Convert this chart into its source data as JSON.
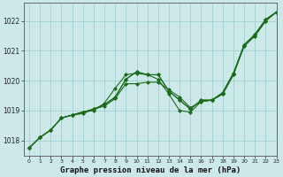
{
  "xlabel": "Graphe pression niveau de la mer (hPa)",
  "xlim": [
    -0.5,
    23
  ],
  "ylim": [
    1017.5,
    1022.6
  ],
  "yticks": [
    1018,
    1019,
    1020,
    1021,
    1022
  ],
  "xticks": [
    0,
    1,
    2,
    3,
    4,
    5,
    6,
    7,
    8,
    9,
    10,
    11,
    12,
    13,
    14,
    15,
    16,
    17,
    18,
    19,
    20,
    21,
    22,
    23
  ],
  "background_color": "#cce8e8",
  "grid_color": "#99cccc",
  "line_color": "#1a6b1a",
  "series": [
    [
      1017.75,
      1018.1,
      1018.35,
      1018.75,
      1018.85,
      1018.95,
      1019.05,
      1019.2,
      1019.45,
      1020.05,
      1020.3,
      1020.2,
      1020.2,
      1019.65,
      1019.35,
      1019.05,
      1019.35,
      1019.35,
      1019.6,
      1020.25,
      1021.2,
      1021.55,
      1022.05,
      1022.3
    ],
    [
      1017.75,
      1018.1,
      1018.35,
      1018.75,
      1018.85,
      1018.9,
      1019.05,
      1019.15,
      1019.4,
      1019.9,
      1019.9,
      1019.95,
      1019.95,
      1019.7,
      1019.45,
      1019.1,
      1019.3,
      1019.35,
      1019.55,
      1020.2,
      1021.2,
      1021.5,
      1022.0,
      1022.3
    ],
    [
      1017.75,
      1018.1,
      1018.35,
      1018.75,
      1018.85,
      1018.95,
      1019.0,
      1019.25,
      1019.75,
      1020.2,
      1020.25,
      1020.2,
      1020.05,
      1019.55,
      1019.0,
      1018.95,
      1019.3,
      1019.35,
      1019.55,
      1020.2,
      1021.15,
      1021.5,
      1022.0,
      1022.3
    ],
    [
      1017.75,
      1018.1,
      1018.35,
      1018.75,
      1018.85,
      1018.95,
      1019.05,
      1019.2,
      1019.45,
      1020.05,
      1020.3,
      1020.2,
      1020.2,
      1019.65,
      1019.35,
      1019.05,
      1019.35,
      1019.35,
      1019.6,
      1020.25,
      1021.2,
      1021.55,
      1022.05,
      1022.3
    ]
  ]
}
